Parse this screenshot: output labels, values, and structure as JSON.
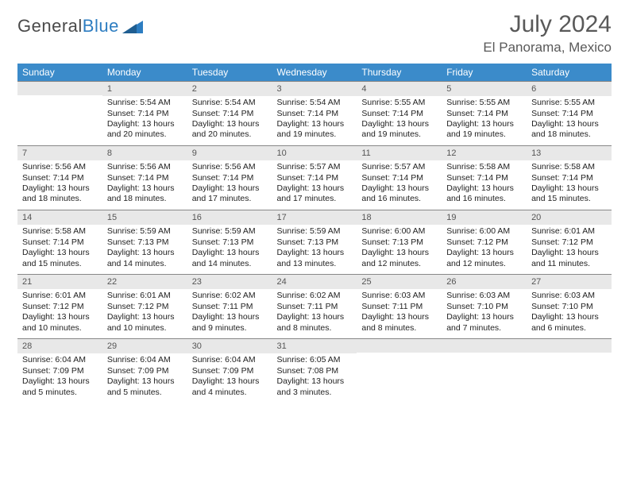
{
  "logo": {
    "word1": "General",
    "word2": "Blue"
  },
  "title": "July 2024",
  "location": "El Panorama, Mexico",
  "colors": {
    "header_bg": "#3b8bca",
    "header_fg": "#ffffff",
    "daybar_bg": "#e8e8e8",
    "daybar_border": "#888888",
    "page_bg": "#ffffff",
    "text": "#222222",
    "title_color": "#595959",
    "logo_gray": "#4a4a4a",
    "logo_blue": "#2d7dc1"
  },
  "weekdays": [
    "Sunday",
    "Monday",
    "Tuesday",
    "Wednesday",
    "Thursday",
    "Friday",
    "Saturday"
  ],
  "layout": {
    "columns": 7,
    "rows": 5,
    "start_weekday_index": 1,
    "days_in_month": 31
  },
  "fonts": {
    "title_pt": 30,
    "location_pt": 17,
    "weekday_pt": 12,
    "daynum_pt": 11,
    "body_pt": 10.5
  },
  "days": [
    {
      "n": 1,
      "sunrise": "5:54 AM",
      "sunset": "7:14 PM",
      "daylight": "13 hours and 20 minutes."
    },
    {
      "n": 2,
      "sunrise": "5:54 AM",
      "sunset": "7:14 PM",
      "daylight": "13 hours and 20 minutes."
    },
    {
      "n": 3,
      "sunrise": "5:54 AM",
      "sunset": "7:14 PM",
      "daylight": "13 hours and 19 minutes."
    },
    {
      "n": 4,
      "sunrise": "5:55 AM",
      "sunset": "7:14 PM",
      "daylight": "13 hours and 19 minutes."
    },
    {
      "n": 5,
      "sunrise": "5:55 AM",
      "sunset": "7:14 PM",
      "daylight": "13 hours and 19 minutes."
    },
    {
      "n": 6,
      "sunrise": "5:55 AM",
      "sunset": "7:14 PM",
      "daylight": "13 hours and 18 minutes."
    },
    {
      "n": 7,
      "sunrise": "5:56 AM",
      "sunset": "7:14 PM",
      "daylight": "13 hours and 18 minutes."
    },
    {
      "n": 8,
      "sunrise": "5:56 AM",
      "sunset": "7:14 PM",
      "daylight": "13 hours and 18 minutes."
    },
    {
      "n": 9,
      "sunrise": "5:56 AM",
      "sunset": "7:14 PM",
      "daylight": "13 hours and 17 minutes."
    },
    {
      "n": 10,
      "sunrise": "5:57 AM",
      "sunset": "7:14 PM",
      "daylight": "13 hours and 17 minutes."
    },
    {
      "n": 11,
      "sunrise": "5:57 AM",
      "sunset": "7:14 PM",
      "daylight": "13 hours and 16 minutes."
    },
    {
      "n": 12,
      "sunrise": "5:58 AM",
      "sunset": "7:14 PM",
      "daylight": "13 hours and 16 minutes."
    },
    {
      "n": 13,
      "sunrise": "5:58 AM",
      "sunset": "7:14 PM",
      "daylight": "13 hours and 15 minutes."
    },
    {
      "n": 14,
      "sunrise": "5:58 AM",
      "sunset": "7:14 PM",
      "daylight": "13 hours and 15 minutes."
    },
    {
      "n": 15,
      "sunrise": "5:59 AM",
      "sunset": "7:13 PM",
      "daylight": "13 hours and 14 minutes."
    },
    {
      "n": 16,
      "sunrise": "5:59 AM",
      "sunset": "7:13 PM",
      "daylight": "13 hours and 14 minutes."
    },
    {
      "n": 17,
      "sunrise": "5:59 AM",
      "sunset": "7:13 PM",
      "daylight": "13 hours and 13 minutes."
    },
    {
      "n": 18,
      "sunrise": "6:00 AM",
      "sunset": "7:13 PM",
      "daylight": "13 hours and 12 minutes."
    },
    {
      "n": 19,
      "sunrise": "6:00 AM",
      "sunset": "7:12 PM",
      "daylight": "13 hours and 12 minutes."
    },
    {
      "n": 20,
      "sunrise": "6:01 AM",
      "sunset": "7:12 PM",
      "daylight": "13 hours and 11 minutes."
    },
    {
      "n": 21,
      "sunrise": "6:01 AM",
      "sunset": "7:12 PM",
      "daylight": "13 hours and 10 minutes."
    },
    {
      "n": 22,
      "sunrise": "6:01 AM",
      "sunset": "7:12 PM",
      "daylight": "13 hours and 10 minutes."
    },
    {
      "n": 23,
      "sunrise": "6:02 AM",
      "sunset": "7:11 PM",
      "daylight": "13 hours and 9 minutes."
    },
    {
      "n": 24,
      "sunrise": "6:02 AM",
      "sunset": "7:11 PM",
      "daylight": "13 hours and 8 minutes."
    },
    {
      "n": 25,
      "sunrise": "6:03 AM",
      "sunset": "7:11 PM",
      "daylight": "13 hours and 8 minutes."
    },
    {
      "n": 26,
      "sunrise": "6:03 AM",
      "sunset": "7:10 PM",
      "daylight": "13 hours and 7 minutes."
    },
    {
      "n": 27,
      "sunrise": "6:03 AM",
      "sunset": "7:10 PM",
      "daylight": "13 hours and 6 minutes."
    },
    {
      "n": 28,
      "sunrise": "6:04 AM",
      "sunset": "7:09 PM",
      "daylight": "13 hours and 5 minutes."
    },
    {
      "n": 29,
      "sunrise": "6:04 AM",
      "sunset": "7:09 PM",
      "daylight": "13 hours and 5 minutes."
    },
    {
      "n": 30,
      "sunrise": "6:04 AM",
      "sunset": "7:09 PM",
      "daylight": "13 hours and 4 minutes."
    },
    {
      "n": 31,
      "sunrise": "6:05 AM",
      "sunset": "7:08 PM",
      "daylight": "13 hours and 3 minutes."
    }
  ],
  "labels": {
    "sunrise": "Sunrise:",
    "sunset": "Sunset:",
    "daylight": "Daylight:"
  }
}
